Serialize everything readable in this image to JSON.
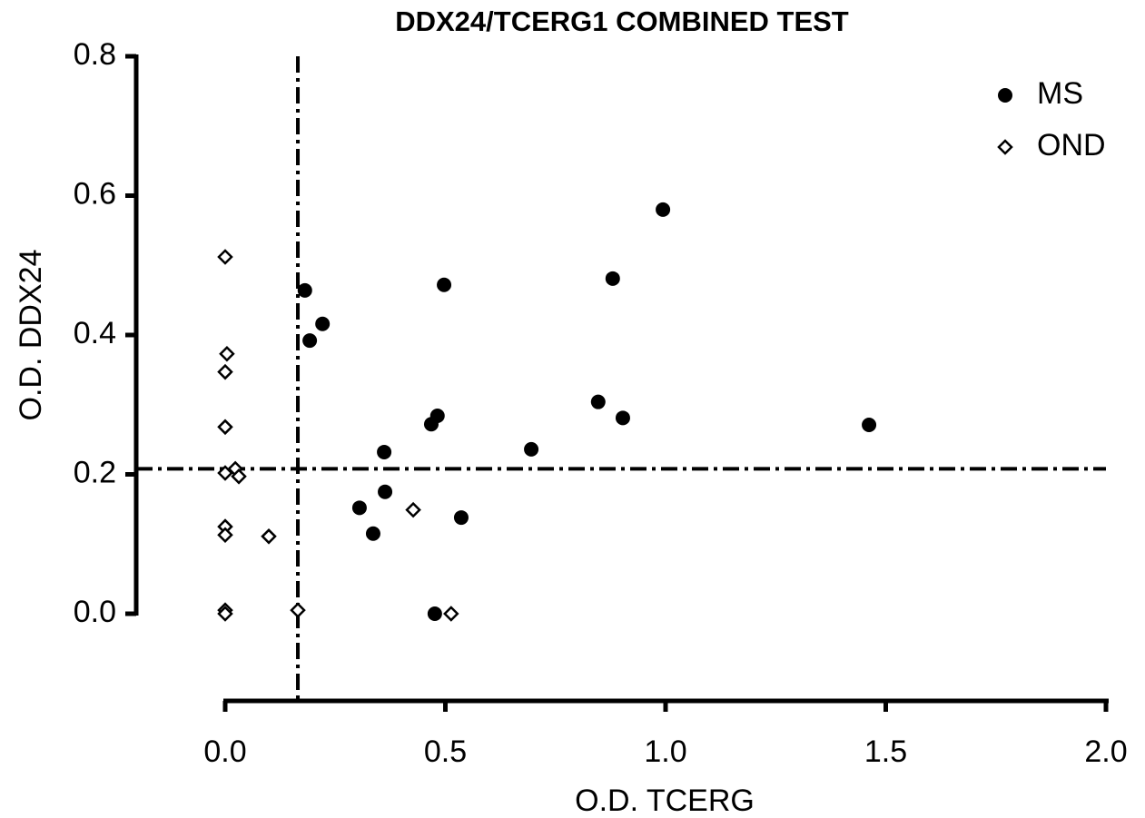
{
  "chart_data": {
    "type": "scatter",
    "title": "DDX24/TCERG1 COMBINED  TEST",
    "x_label": "O.D. TCERG",
    "y_label": "O.D. DDX24",
    "xlim": [
      0,
      2
    ],
    "ylim": [
      0,
      0.8
    ],
    "xticks": [
      {
        "value": 0,
        "label": "0.0"
      },
      0.5,
      {
        "value": 1,
        "label": "1.0"
      },
      1.5,
      {
        "value": 2,
        "label": "2.0"
      }
    ],
    "yticks": [
      {
        "value": 0,
        "label": "0.0"
      },
      0.2,
      0.4,
      0.6,
      0.8
    ],
    "vline": 0.165,
    "hline": 0.208,
    "legend": "top-right",
    "series": [
      {
        "name": "MS",
        "color": "#000000",
        "marker": "circle",
        "x": [
          0.181,
          0.192,
          0.221,
          0.497,
          0.994,
          0.88,
          0.847,
          0.903,
          1.462,
          0.695,
          0.468,
          0.482,
          0.361,
          0.363,
          0.305,
          0.336,
          0.536,
          0.476
        ],
        "values": [
          0.464,
          0.392,
          0.416,
          0.472,
          0.58,
          0.481,
          0.304,
          0.281,
          0.271,
          0.236,
          0.272,
          0.284,
          0.232,
          0.175,
          0.152,
          0.115,
          0.138,
          0
        ]
      },
      {
        "name": "OND",
        "color": "#000000",
        "marker": "diamond",
        "x": [
          0,
          0.004,
          0,
          0,
          0,
          0.023,
          0.031,
          0,
          0,
          0.099,
          0.427,
          0.165,
          0.513,
          0,
          0
        ],
        "values": [
          0.512,
          0.373,
          0.347,
          0.268,
          0.202,
          0.208,
          0.197,
          0.125,
          0.113,
          0.111,
          0.149,
          0.005,
          0,
          0.005,
          0
        ]
      }
    ]
  }
}
